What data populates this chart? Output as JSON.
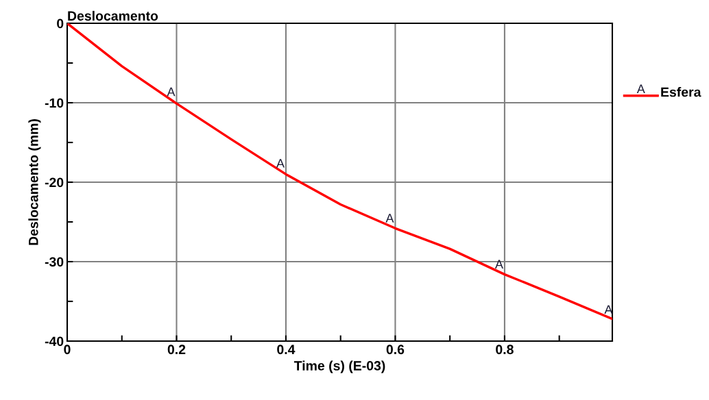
{
  "chart_data": {
    "type": "line",
    "title": "Deslocamento",
    "xlabel": "Time (s) (E-03)",
    "ylabel": "Deslocamento (mm)",
    "x": [
      0,
      0.1,
      0.2,
      0.3,
      0.4,
      0.5,
      0.6,
      0.7,
      0.8,
      0.9,
      0.997
    ],
    "series": [
      {
        "name": "Esfera",
        "color": "#ff0000",
        "values": [
          0,
          -5.4,
          -10.1,
          -14.6,
          -19.0,
          -22.8,
          -25.8,
          -28.4,
          -31.6,
          -34.4,
          -37.2
        ]
      }
    ],
    "annotations": [
      {
        "text": "A",
        "x": 0.19,
        "y": -9.6
      },
      {
        "text": "A",
        "x": 0.39,
        "y": -18.6
      },
      {
        "text": "A",
        "x": 0.59,
        "y": -25.5
      },
      {
        "text": "A",
        "x": 0.79,
        "y": -31.3
      },
      {
        "text": "A",
        "x": 0.99,
        "y": -37.0
      }
    ],
    "xlim": [
      0,
      0.997
    ],
    "ylim": [
      -40,
      0
    ],
    "xticks": [
      0,
      {
        "value": 0.1,
        "label": null
      },
      0.2,
      {
        "value": 0.3,
        "label": null
      },
      0.4,
      {
        "value": 0.5,
        "label": null
      },
      0.6,
      {
        "value": 0.7,
        "label": null
      },
      0.8,
      {
        "value": 0.9,
        "label": null
      }
    ],
    "yticks": [
      -40,
      {
        "value": -35,
        "label": null
      },
      -30,
      {
        "value": -25,
        "label": null
      },
      -20,
      {
        "value": -15,
        "label": null
      },
      -10,
      {
        "value": -5,
        "label": null
      },
      0
    ],
    "grid": true,
    "legend": "right",
    "line_style": "solid"
  }
}
